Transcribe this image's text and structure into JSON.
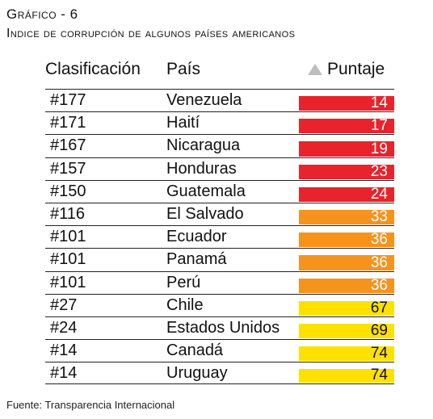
{
  "figure_label": "Gráfico - 6",
  "figure_subtitle": "Indice de corrupción de algunos países americanos",
  "headers": {
    "rank": "Clasificación",
    "country": "País",
    "score": "Puntaje"
  },
  "icons": {
    "score_header": "triangle-up-icon"
  },
  "colors": {
    "low": "#e8232b",
    "mid": "#f6931d",
    "high": "#ffe100"
  },
  "source": "Fuente: Transparencia Internacional",
  "chart_data": {
    "type": "table",
    "columns": [
      "Clasificación",
      "País",
      "Puntaje"
    ],
    "rows": [
      {
        "rank": "#177",
        "country": "Venezuela",
        "score": 14,
        "band": "low"
      },
      {
        "rank": "#171",
        "country": "Haití",
        "score": 17,
        "band": "low"
      },
      {
        "rank": "#167",
        "country": "Nicaragua",
        "score": 19,
        "band": "low"
      },
      {
        "rank": "#157",
        "country": "Honduras",
        "score": 23,
        "band": "low"
      },
      {
        "rank": "#150",
        "country": "Guatemala",
        "score": 24,
        "band": "low"
      },
      {
        "rank": "#116",
        "country": "El Salvado",
        "score": 33,
        "band": "mid"
      },
      {
        "rank": "#101",
        "country": "Ecuador",
        "score": 36,
        "band": "mid"
      },
      {
        "rank": "#101",
        "country": "Panamá",
        "score": 36,
        "band": "mid"
      },
      {
        "rank": "#101",
        "country": "Perú",
        "score": 36,
        "band": "mid"
      },
      {
        "rank": "#27",
        "country": "Chile",
        "score": 67,
        "band": "high"
      },
      {
        "rank": "#24",
        "country": "Estados Unidos",
        "score": 69,
        "band": "high"
      },
      {
        "rank": "#14",
        "country": "Canadá",
        "score": 74,
        "band": "high"
      },
      {
        "rank": "#14",
        "country": "Uruguay",
        "score": 74,
        "band": "high"
      }
    ]
  }
}
